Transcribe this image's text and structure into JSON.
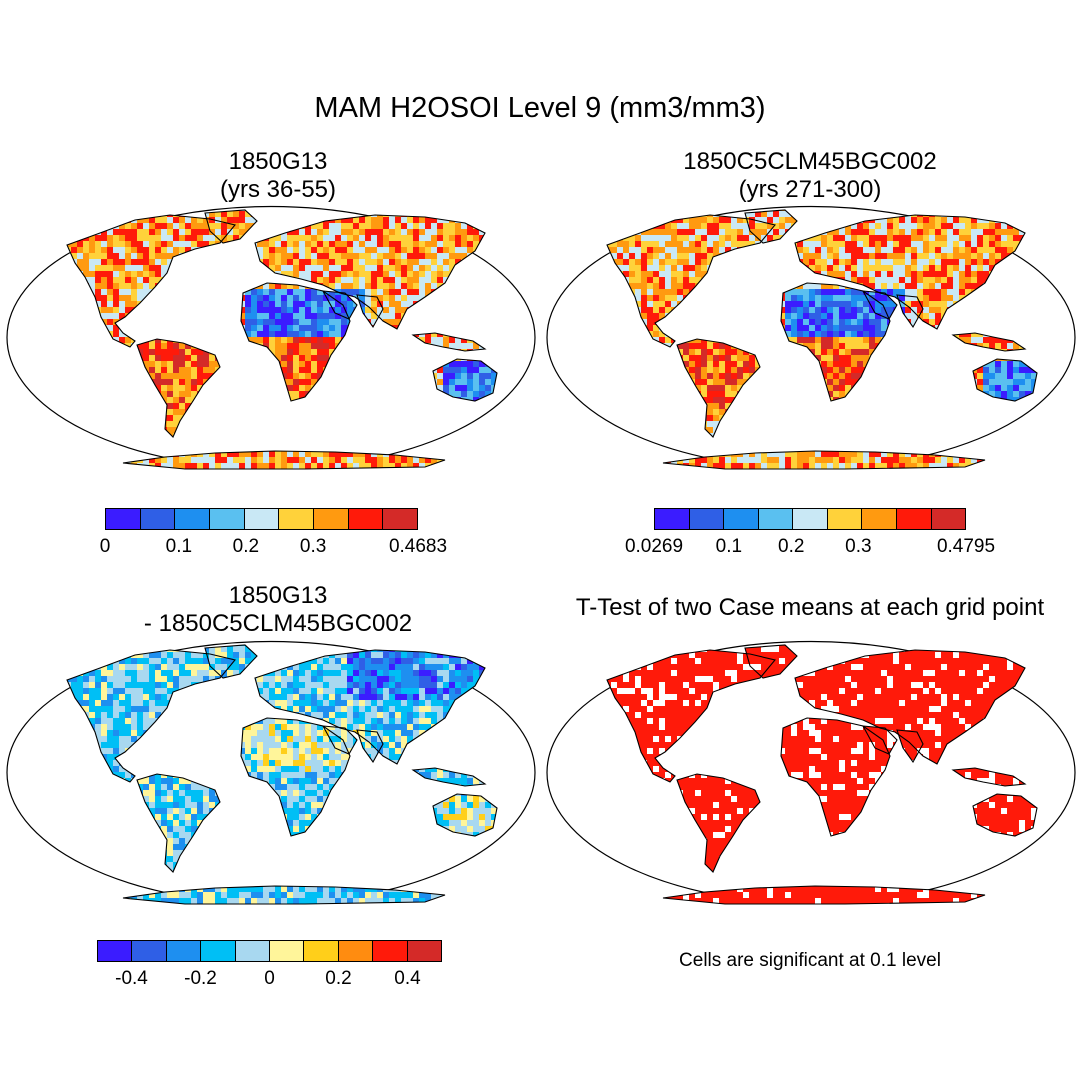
{
  "title": "MAM H2OSOI Level 9 (mm3/mm3)",
  "panels": [
    {
      "id": "p1",
      "title_line1": "1850G13",
      "title_line2": "(yrs 36-55)",
      "field": "case1"
    },
    {
      "id": "p2",
      "title_line1": "1850C5CLM45BGC002",
      "title_line2": "(yrs 271-300)",
      "field": "case2"
    },
    {
      "id": "p3",
      "title_line1": "1850G13",
      "title_line2": "- 1850C5CLM45BGC002",
      "field": "diff"
    },
    {
      "id": "p4",
      "title_line1": "T-Test of two Case means at each grid point",
      "title_line2": "",
      "field": "ttest"
    }
  ],
  "colorbars": {
    "case1": {
      "colors": [
        "#3b1cff",
        "#2f5fe6",
        "#1e8ff0",
        "#5ac0f0",
        "#c9e8f5",
        "#ffd23a",
        "#ff9a10",
        "#ff1a0a",
        "#d42a28"
      ],
      "labels": [
        "0",
        "0.1",
        "0.2",
        "0.3",
        "0.4683"
      ]
    },
    "case2": {
      "colors": [
        "#3b1cff",
        "#2f5fe6",
        "#1e8ff0",
        "#5ac0f0",
        "#c9e8f5",
        "#ffd23a",
        "#ff9a10",
        "#ff1a0a",
        "#d42a28"
      ],
      "labels": [
        "0.0269",
        "0.1",
        "0.2",
        "0.3",
        "0.4795"
      ]
    },
    "diff": {
      "colors": [
        "#3b1cff",
        "#2f5fe6",
        "#1e8ff0",
        "#00bff5",
        "#a8d8f0",
        "#fff59a",
        "#ffcf1a",
        "#ff8c10",
        "#ff1a0a",
        "#d42a28"
      ],
      "labels": [
        "-0.4",
        "-0.2",
        "0",
        "0.2",
        "0.4"
      ]
    }
  },
  "ttest_note": "Cells are significant at 0.1 level",
  "colors": {
    "significant": "#ff1a0a",
    "coastline": "#000000"
  }
}
